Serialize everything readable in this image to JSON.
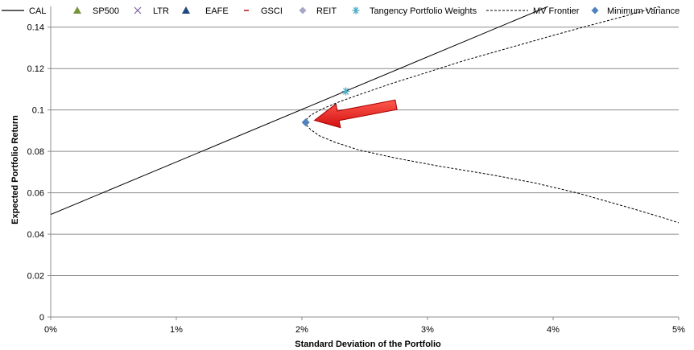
{
  "chart_data": {
    "type": "scatter",
    "title": "",
    "xlabel": "Standard Deviation of the Portfolio",
    "ylabel": "Expected Portfolio Return",
    "xlim": [
      0,
      0.05
    ],
    "ylim": [
      0,
      0.15
    ],
    "x_ticks": [
      {
        "value": 0,
        "label": "0%"
      },
      {
        "value": 0.01,
        "label": "1%"
      },
      {
        "value": 0.02,
        "label": "2%"
      },
      {
        "value": 0.03,
        "label": "3%"
      },
      {
        "value": 0.04,
        "label": "4%"
      },
      {
        "value": 0.05,
        "label": "5%"
      }
    ],
    "y_ticks": [
      {
        "value": 0,
        "label": "0"
      },
      {
        "value": 0.02,
        "label": "0.02"
      },
      {
        "value": 0.04,
        "label": "0.04"
      },
      {
        "value": 0.06,
        "label": "0.06"
      },
      {
        "value": 0.08,
        "label": "0.08"
      },
      {
        "value": 0.1,
        "label": "0.1"
      },
      {
        "value": 0.12,
        "label": "0.12"
      },
      {
        "value": 0.14,
        "label": "0.14"
      }
    ],
    "grid": "horizontal",
    "legend_position": "top",
    "legend": [
      {
        "label": "CAL",
        "marker": "line",
        "color": "#000000"
      },
      {
        "label": "SP500",
        "marker": "triangle",
        "color": "#77933C"
      },
      {
        "label": "LTR",
        "marker": "x",
        "color": "#8064A2"
      },
      {
        "label": "EAFE",
        "marker": "triangle",
        "color": "#1F497D"
      },
      {
        "label": "GSCI",
        "marker": "dash",
        "color": "#C0504D"
      },
      {
        "label": "REIT",
        "marker": "diamond",
        "color": "#A6A6C8"
      },
      {
        "label": "Tangency Portfolio Weights",
        "marker": "asterisk",
        "color": "#4BACC6"
      },
      {
        "label": "MV Frontier",
        "marker": "dashed-line",
        "color": "#000000"
      },
      {
        "label": "Minimum Variance",
        "marker": "diamond",
        "color": "#4F81BD"
      }
    ],
    "series": [
      {
        "name": "CAL",
        "type": "line",
        "color": "#000000",
        "points": [
          [
            0,
            0.0495
          ],
          [
            0.0396,
            0.15
          ]
        ]
      },
      {
        "name": "MV Frontier",
        "type": "dashed-line",
        "color": "#000000",
        "points": [
          [
            0.0485,
            0.15
          ],
          [
            0.0455,
            0.145
          ],
          [
            0.043,
            0.141
          ],
          [
            0.04,
            0.136
          ],
          [
            0.0365,
            0.13
          ],
          [
            0.033,
            0.124
          ],
          [
            0.0299,
            0.118
          ],
          [
            0.027,
            0.1125
          ],
          [
            0.0246,
            0.1075
          ],
          [
            0.023,
            0.104
          ],
          [
            0.0216,
            0.1005
          ],
          [
            0.0207,
            0.0975
          ],
          [
            0.0203,
            0.095
          ],
          [
            0.0203,
            0.093
          ],
          [
            0.0207,
            0.0905
          ],
          [
            0.0214,
            0.0875
          ],
          [
            0.0226,
            0.0845
          ],
          [
            0.0245,
            0.0807
          ],
          [
            0.0275,
            0.0767
          ],
          [
            0.031,
            0.0728
          ],
          [
            0.035,
            0.0688
          ],
          [
            0.0385,
            0.0648
          ],
          [
            0.042,
            0.0598
          ],
          [
            0.0445,
            0.0555
          ],
          [
            0.0468,
            0.0515
          ],
          [
            0.049,
            0.0475
          ],
          [
            0.05,
            0.0455
          ]
        ]
      },
      {
        "name": "Tangency Portfolio Weights",
        "type": "point",
        "marker": "asterisk",
        "color": "#4BACC6",
        "points": [
          [
            0.0235,
            0.109
          ]
        ]
      },
      {
        "name": "Minimum Variance",
        "type": "point",
        "marker": "diamond",
        "color": "#4F81BD",
        "points": [
          [
            0.0203,
            0.094
          ]
        ]
      }
    ],
    "annotations": [
      {
        "type": "arrow",
        "color": "#E31A1C",
        "from": [
          0.0275,
          0.1025
        ],
        "to": [
          0.021,
          0.095
        ]
      }
    ]
  }
}
